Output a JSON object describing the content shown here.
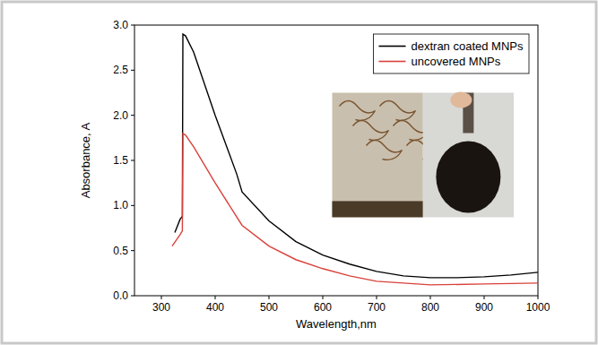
{
  "chart_data": {
    "type": "line",
    "x_label": "Wavelength,nm",
    "y_label": "Absorbance, A",
    "xlim": [
      250,
      1000
    ],
    "xticks": [
      300,
      400,
      500,
      600,
      700,
      800,
      900,
      1000
    ],
    "ylim": [
      0,
      3
    ],
    "yticks": [
      {
        "value": 0,
        "label": "0.0"
      },
      0.5,
      {
        "value": 1,
        "label": "1.0"
      },
      1.5,
      {
        "value": 2,
        "label": "2.0"
      },
      2.5,
      {
        "value": 3,
        "label": "3.0"
      }
    ],
    "grid": false,
    "legend": "upper right",
    "series": [
      {
        "name": "dextran coated MNPs",
        "color": "#000000",
        "x": [
          325,
          335,
          339,
          340,
          345,
          360,
          400,
          440,
          450,
          500,
          550,
          600,
          650,
          700,
          750,
          800,
          850,
          900,
          950,
          1000
        ],
        "values": [
          0.7,
          0.85,
          0.88,
          2.9,
          2.88,
          2.7,
          2.0,
          1.35,
          1.15,
          0.83,
          0.6,
          0.45,
          0.35,
          0.27,
          0.22,
          0.2,
          0.2,
          0.21,
          0.23,
          0.26
        ]
      },
      {
        "name": "uncovered MNPs",
        "color": "#d9413a",
        "x": [
          320,
          335,
          339,
          340,
          345,
          360,
          400,
          450,
          500,
          550,
          600,
          650,
          700,
          800,
          900,
          1000
        ],
        "values": [
          0.55,
          0.68,
          0.72,
          1.8,
          1.78,
          1.65,
          1.25,
          0.78,
          0.55,
          0.4,
          0.3,
          0.22,
          0.16,
          0.12,
          0.13,
          0.14
        ]
      }
    ]
  }
}
